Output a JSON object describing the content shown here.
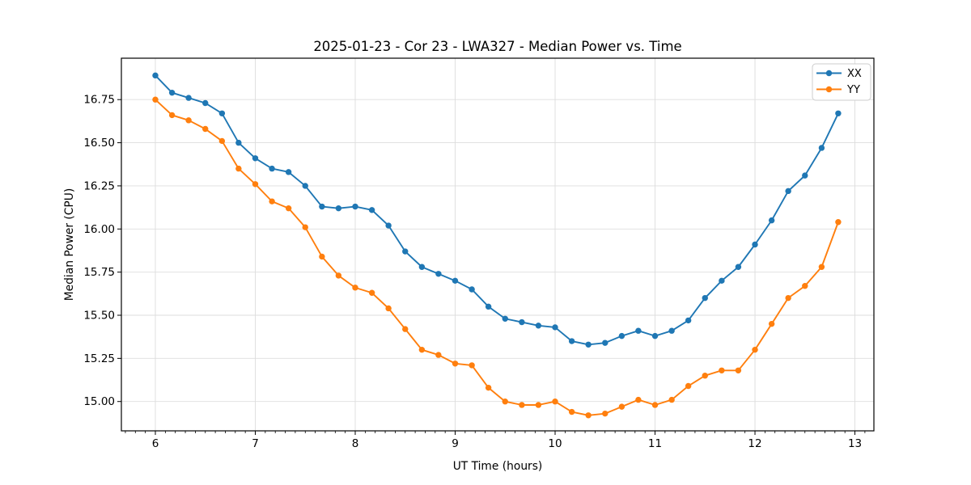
{
  "figure": {
    "title": "2025-01-23 - Cor 23 - LWA327 - Median Power vs. Time",
    "xlabel": "UT Time (hours)",
    "ylabel": "Median Power (CPU)"
  },
  "legend": {
    "entries": [
      {
        "label": "XX",
        "color": "#1f77b4"
      },
      {
        "label": "YY",
        "color": "#ff7f0e"
      }
    ]
  },
  "chart_data": {
    "type": "line",
    "title": "2025-01-23 - Cor 23 - LWA327 - Median Power vs. Time",
    "xlabel": "UT Time (hours)",
    "ylabel": "Median Power (CPU)",
    "grid": true,
    "legend_position": "upper right",
    "xlim": [
      5.66,
      13.19
    ],
    "ylim": [
      14.83,
      16.99
    ],
    "x_ticks": [
      6,
      7,
      8,
      9,
      10,
      11,
      12,
      13
    ],
    "x_minor_tick_step": 0.1,
    "y_ticks": [
      15.0,
      15.25,
      15.5,
      15.75,
      16.0,
      16.25,
      16.5,
      16.75
    ],
    "x": [
      6.0,
      6.167,
      6.333,
      6.5,
      6.667,
      6.833,
      7.0,
      7.167,
      7.333,
      7.5,
      7.667,
      7.833,
      8.0,
      8.167,
      8.333,
      8.5,
      8.667,
      8.833,
      9.0,
      9.167,
      9.333,
      9.5,
      9.667,
      9.833,
      10.0,
      10.167,
      10.333,
      10.5,
      10.667,
      10.833,
      11.0,
      11.167,
      11.333,
      11.5,
      11.667,
      11.833,
      12.0,
      12.167,
      12.333,
      12.5,
      12.667,
      12.833
    ],
    "series": [
      {
        "name": "XX",
        "color": "#1f77b4",
        "marker": "circle",
        "values": [
          16.89,
          16.79,
          16.76,
          16.73,
          16.67,
          16.5,
          16.41,
          16.35,
          16.33,
          16.25,
          16.13,
          16.12,
          16.13,
          16.11,
          16.02,
          15.87,
          15.78,
          15.74,
          15.7,
          15.65,
          15.55,
          15.48,
          15.46,
          15.44,
          15.43,
          15.35,
          15.33,
          15.34,
          15.38,
          15.41,
          15.38,
          15.41,
          15.47,
          15.6,
          15.7,
          15.78,
          15.91,
          16.05,
          16.22,
          16.31,
          16.47,
          16.67
        ]
      },
      {
        "name": "YY",
        "color": "#ff7f0e",
        "marker": "circle",
        "values": [
          16.75,
          16.66,
          16.63,
          16.58,
          16.51,
          16.35,
          16.26,
          16.16,
          16.12,
          16.01,
          15.84,
          15.73,
          15.66,
          15.63,
          15.54,
          15.42,
          15.3,
          15.27,
          15.22,
          15.21,
          15.08,
          15.0,
          14.98,
          14.98,
          15.0,
          14.94,
          14.92,
          14.93,
          14.97,
          15.01,
          14.98,
          15.01,
          15.09,
          15.15,
          15.18,
          15.18,
          15.3,
          15.45,
          15.6,
          15.67,
          15.78,
          16.04
        ]
      }
    ],
    "style": {
      "grid_color": "#dddddd",
      "spine_color": "#000000",
      "background": "#ffffff"
    }
  }
}
